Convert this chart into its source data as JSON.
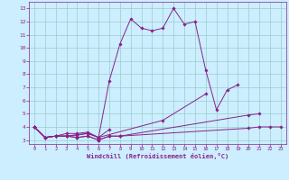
{
  "title": "",
  "xlabel": "Windchill (Refroidissement éolien,°C)",
  "bg_color": "#cceeff",
  "line_color": "#882288",
  "grid_color": "#99cccc",
  "text_color": "#882288",
  "xlim": [
    -0.5,
    23.5
  ],
  "ylim": [
    2.7,
    13.5
  ],
  "xticks": [
    0,
    1,
    2,
    3,
    4,
    5,
    6,
    7,
    8,
    9,
    10,
    11,
    12,
    13,
    14,
    15,
    16,
    17,
    18,
    19,
    20,
    21,
    22,
    23
  ],
  "yticks": [
    3,
    4,
    5,
    6,
    7,
    8,
    9,
    10,
    11,
    12,
    13
  ],
  "series": [
    [
      4.0,
      3.2,
      3.3,
      3.3,
      3.2,
      3.3,
      3.0,
      3.3,
      3.3,
      null,
      null,
      null,
      null,
      null,
      null,
      null,
      null,
      null,
      null,
      null,
      3.9,
      4.0,
      4.0,
      4.0
    ],
    [
      4.0,
      3.2,
      3.3,
      3.3,
      3.2,
      3.3,
      3.0,
      3.3,
      3.3,
      null,
      null,
      null,
      null,
      null,
      null,
      null,
      null,
      null,
      null,
      null,
      4.9,
      5.0,
      null,
      null
    ],
    [
      4.0,
      3.2,
      3.3,
      3.5,
      3.5,
      3.6,
      3.2,
      3.8,
      null,
      null,
      null,
      null,
      null,
      null,
      null,
      null,
      null,
      null,
      null,
      null,
      null,
      null,
      null,
      null
    ],
    [
      4.0,
      3.2,
      3.3,
      3.3,
      3.4,
      3.5,
      3.2,
      7.5,
      10.3,
      12.2,
      11.5,
      11.3,
      11.5,
      13.0,
      11.8,
      12.0,
      8.3,
      5.3,
      6.8,
      7.2,
      null,
      null,
      null,
      null
    ],
    [
      4.0,
      3.2,
      3.3,
      3.3,
      3.4,
      3.5,
      3.2,
      null,
      null,
      null,
      null,
      null,
      4.5,
      null,
      null,
      null,
      6.5,
      null,
      null,
      null,
      null,
      null,
      null,
      null
    ]
  ]
}
